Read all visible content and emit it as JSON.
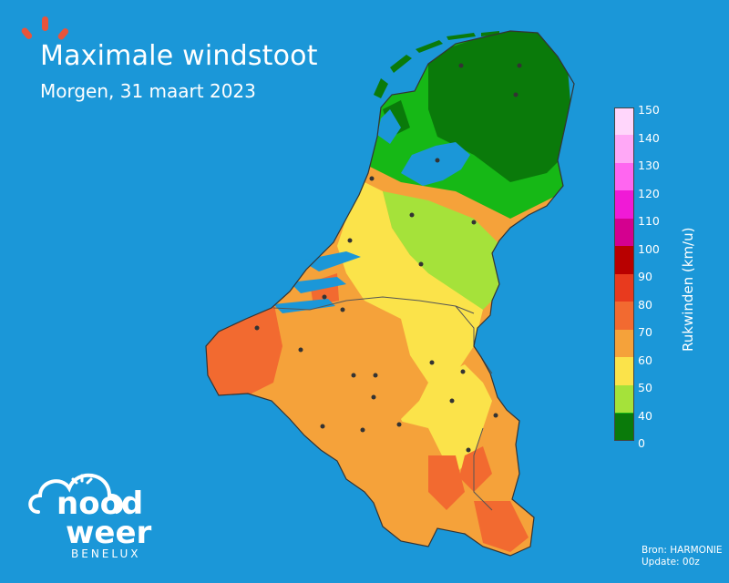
{
  "header": {
    "title": "Maximale windstoot",
    "subtitle": "Morgen, 31 maart 2023"
  },
  "colorbar": {
    "label": "Rukwinden (km/u)",
    "ticks": [
      "150",
      "140",
      "130",
      "120",
      "110",
      "100",
      "90",
      "80",
      "70",
      "60",
      "50",
      "40",
      "0"
    ],
    "colors": [
      "#ffd6fb",
      "#ffa8f6",
      "#ff66f0",
      "#f01ad6",
      "#d4008f",
      "#b80000",
      "#e83a1e",
      "#f26a30",
      "#f5a23a",
      "#fbe34a",
      "#a5e23a",
      "#16b816",
      "#0a7a0a"
    ]
  },
  "source": {
    "line1": "Bron: HARMONIE",
    "line2": "Update: 00z"
  },
  "logo": {
    "word1": "nood",
    "word2": "weer",
    "tagline": "BENELUX"
  },
  "colors": {
    "background": "#1b97d8",
    "sun_accent": "#e8543b"
  }
}
